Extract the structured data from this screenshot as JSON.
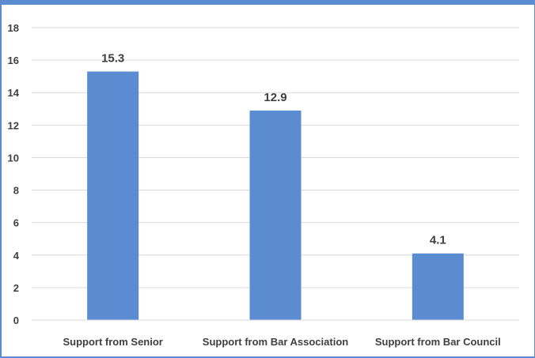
{
  "chart_data": {
    "type": "bar",
    "categories": [
      "Support from Senior",
      "Support from Bar Association",
      "Support from Bar Council"
    ],
    "values": [
      15.3,
      12.9,
      4.1
    ],
    "data_labels": [
      "15.3",
      "12.9",
      "4.1"
    ],
    "title": "",
    "xlabel": "",
    "ylabel": "",
    "ylim": [
      0,
      18
    ],
    "yticks": [
      0,
      2,
      4,
      6,
      8,
      10,
      12,
      14,
      16,
      18
    ],
    "grid": true,
    "legend": "none",
    "bar_color": "#5B8BD0",
    "frame_color": "#5B8BD0"
  }
}
